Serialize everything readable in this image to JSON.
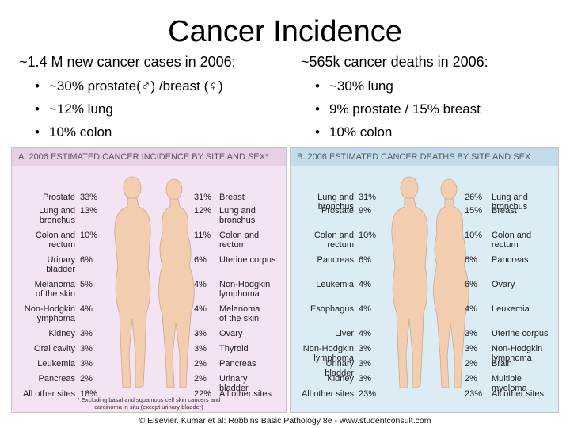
{
  "title": "Cancer Incidence",
  "left": {
    "heading": "~1.4 M new cancer cases in 2006:",
    "bullets": [
      "~30% prostate(♂) /breast (♀)",
      "~12% lung",
      "10% colon"
    ]
  },
  "right": {
    "heading": "~565k cancer deaths in 2006:",
    "bullets": [
      "~30% lung",
      "9% prostate / 15% breast",
      "10% colon"
    ]
  },
  "panel_a": {
    "header": "A. 2006 ESTIMATED CANCER INCIDENCE BY SITE AND SEX*",
    "male": [
      {
        "site": "Prostate",
        "pct": "33%"
      },
      {
        "site": "Lung and\nbronchus",
        "pct": "13%"
      },
      {
        "site": "Colon and\nrectum",
        "pct": "10%"
      },
      {
        "site": "Urinary\nbladder",
        "pct": "6%"
      },
      {
        "site": "Melanoma\nof the skin",
        "pct": "5%"
      },
      {
        "site": "Non-Hodgkin\nlymphoma",
        "pct": "4%"
      },
      {
        "site": "Kidney",
        "pct": "3%"
      },
      {
        "site": "Oral cavity",
        "pct": "3%"
      },
      {
        "site": "Leukemia",
        "pct": "3%"
      },
      {
        "site": "Pancreas",
        "pct": "2%"
      },
      {
        "site": "All other sites",
        "pct": "18%"
      }
    ],
    "female": [
      {
        "site": "Breast",
        "pct": "31%"
      },
      {
        "site": "Lung and\nbronchus",
        "pct": "12%"
      },
      {
        "site": "Colon and\nrectum",
        "pct": "11%"
      },
      {
        "site": "Uterine corpus",
        "pct": "6%"
      },
      {
        "site": "Non-Hodgkin\nlymphoma",
        "pct": "4%"
      },
      {
        "site": "Melanoma\nof the skin",
        "pct": "4%"
      },
      {
        "site": "Ovary",
        "pct": "3%"
      },
      {
        "site": "Thyroid",
        "pct": "3%"
      },
      {
        "site": "Pancreas",
        "pct": "2%"
      },
      {
        "site": "Urinary\nbladder",
        "pct": "2%"
      },
      {
        "site": "All other sites",
        "pct": "22%"
      }
    ],
    "footnote": "* Excluding basal and squamous cell skin cancers and\ncarcinoma in situ (except urinary bladder)"
  },
  "panel_b": {
    "header": "B. 2006 ESTIMATED CANCER DEATHS BY SITE AND SEX",
    "male": [
      {
        "site": "Lung and\nbronchus",
        "pct": "31%"
      },
      {
        "site": "Prostate",
        "pct": "9%"
      },
      {
        "site": "Colon and\nrectum",
        "pct": "10%"
      },
      {
        "site": "Pancreas",
        "pct": "6%"
      },
      {
        "site": "Leukemia",
        "pct": "4%"
      },
      {
        "site": "Esophagus",
        "pct": "4%"
      },
      {
        "site": "Liver",
        "pct": "4%"
      },
      {
        "site": "Non-Hodgkin\nlymphoma",
        "pct": "3%"
      },
      {
        "site": "Urinary\nbladder",
        "pct": "3%"
      },
      {
        "site": "Kidney",
        "pct": "3%"
      },
      {
        "site": "All other sites",
        "pct": "23%"
      }
    ],
    "female": [
      {
        "site": "Lung and\nbronchus",
        "pct": "26%"
      },
      {
        "site": "Breast",
        "pct": "15%"
      },
      {
        "site": "Colon and\nrectum",
        "pct": "10%"
      },
      {
        "site": "Pancreas",
        "pct": "6%"
      },
      {
        "site": "Ovary",
        "pct": "6%"
      },
      {
        "site": "Leukemia",
        "pct": "4%"
      },
      {
        "site": "Uterine corpus",
        "pct": "3%"
      },
      {
        "site": "Non-Hodgkin\nlymphoma",
        "pct": "3%"
      },
      {
        "site": "Brain",
        "pct": "2%"
      },
      {
        "site": "Multiple\nmyeloma",
        "pct": "2%"
      },
      {
        "site": "All other sites",
        "pct": "23%"
      }
    ]
  },
  "credit": "© Elsevier. Kumar et al: Robbins Basic Pathology 8e - www.studentconsult.com",
  "colors": {
    "panel_a_bg": "#f4e3f2",
    "panel_b_bg": "#dcecf5",
    "skin": "#f2cdb0"
  }
}
